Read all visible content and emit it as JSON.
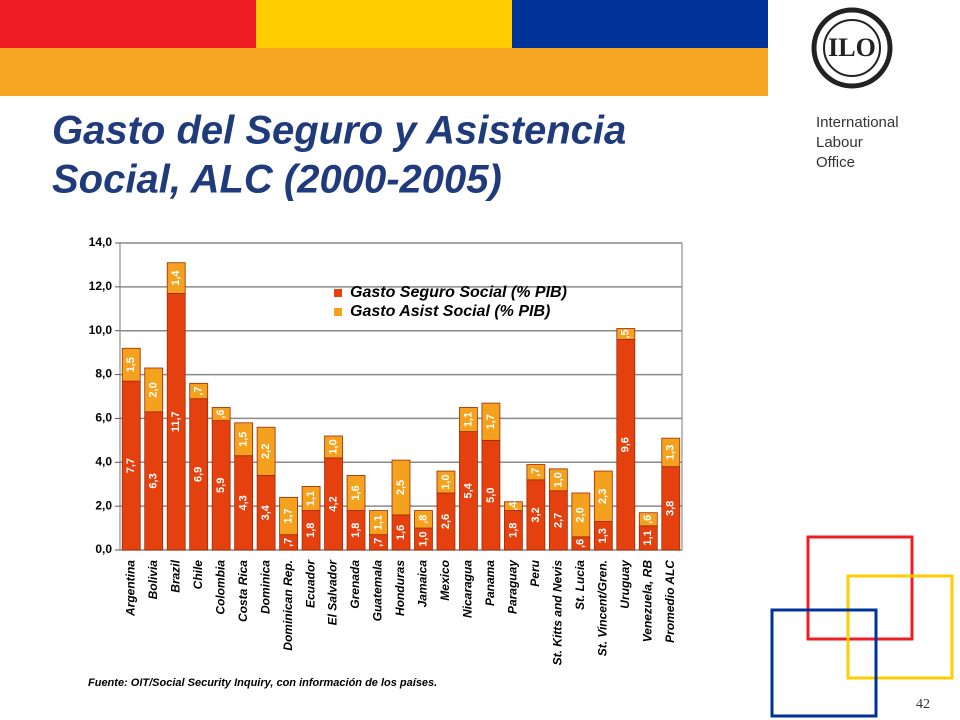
{
  "org_name": [
    "International",
    "Labour",
    "Office"
  ],
  "logo_text": "ILO",
  "page_number": "42",
  "chart_data": {
    "type": "stacked_bar",
    "title": [
      "Gasto del Seguro y Asistencia",
      "Social, ALC (2000-2005)"
    ],
    "source": "Fuente: OIT/Social Security Inquiry, con información de los países.",
    "categories": [
      "Argentina",
      "Bolivia",
      "Brazil",
      "Chile",
      "Colombia",
      "Costa Rica",
      "Dominica",
      "Dominican Rep.",
      "Ecuador",
      "El Salvador",
      "Grenada",
      "Guatemala",
      "Honduras",
      "Jamaica",
      "Mexico",
      "Nicaragua",
      "Panama",
      "Paraguay",
      "Peru",
      "St. Kitts and Nevis",
      "St. Lucia",
      "St. Vincent/Gren.",
      "Uruguay",
      "Venezuela, RB",
      "Promedio ALC"
    ],
    "series": [
      {
        "name": "Gasto Seguro Social (% PIB)",
        "color": "#e4410e",
        "values": [
          7.7,
          6.3,
          11.7,
          6.9,
          5.9,
          4.3,
          3.4,
          0.7,
          1.8,
          4.2,
          1.8,
          0.7,
          1.6,
          1.0,
          2.6,
          5.4,
          5.0,
          1.8,
          3.2,
          2.7,
          0.6,
          1.3,
          9.6,
          1.1,
          3.8
        ],
        "value_labels": [
          "7,7",
          "6,3",
          "11,7",
          "6,9",
          "5,9",
          "4,3",
          "3,4",
          ",7",
          "1,8",
          "4,2",
          "1,8",
          ",7",
          "1,6",
          "1,0",
          "2,6",
          "5,4",
          "5,0",
          "1,8",
          "3,2",
          "2,7",
          ",6",
          "1,3",
          "9,6",
          "1,1",
          "3,8"
        ]
      },
      {
        "name": "Gasto Asist Social (% PIB)",
        "color": "#f4a11e",
        "values": [
          1.5,
          2.0,
          1.4,
          0.7,
          0.6,
          1.5,
          2.2,
          1.7,
          1.1,
          1.0,
          1.6,
          1.1,
          2.5,
          0.8,
          1.0,
          1.1,
          1.7,
          0.4,
          0.7,
          1.0,
          2.0,
          2.3,
          0.5,
          0.6,
          1.3
        ],
        "value_labels": [
          "1,5",
          "2,0",
          "1,4",
          ",7",
          ",6",
          "1,5",
          "2,2",
          "1,7",
          "1,1",
          "1,0",
          "1,6",
          "1,1",
          "2,5",
          ",8",
          "1,0",
          "1,1",
          "1,7",
          ",4",
          ",7",
          "1,0",
          "2,0",
          "2,3",
          ",5",
          ",6",
          "1,3"
        ]
      }
    ],
    "ylim": [
      0,
      14
    ],
    "yticks": [
      {
        "value": 0,
        "label": "0,0"
      },
      {
        "value": 2,
        "label": "2,0"
      },
      {
        "value": 4,
        "label": "4,0"
      },
      {
        "value": 6,
        "label": "6,0"
      },
      {
        "value": 8,
        "label": "8,0"
      },
      {
        "value": 10,
        "label": "10,0"
      },
      {
        "value": 12,
        "label": "12,0"
      },
      {
        "value": 14,
        "label": "14,0"
      }
    ],
    "grid": true,
    "legend": "top"
  }
}
